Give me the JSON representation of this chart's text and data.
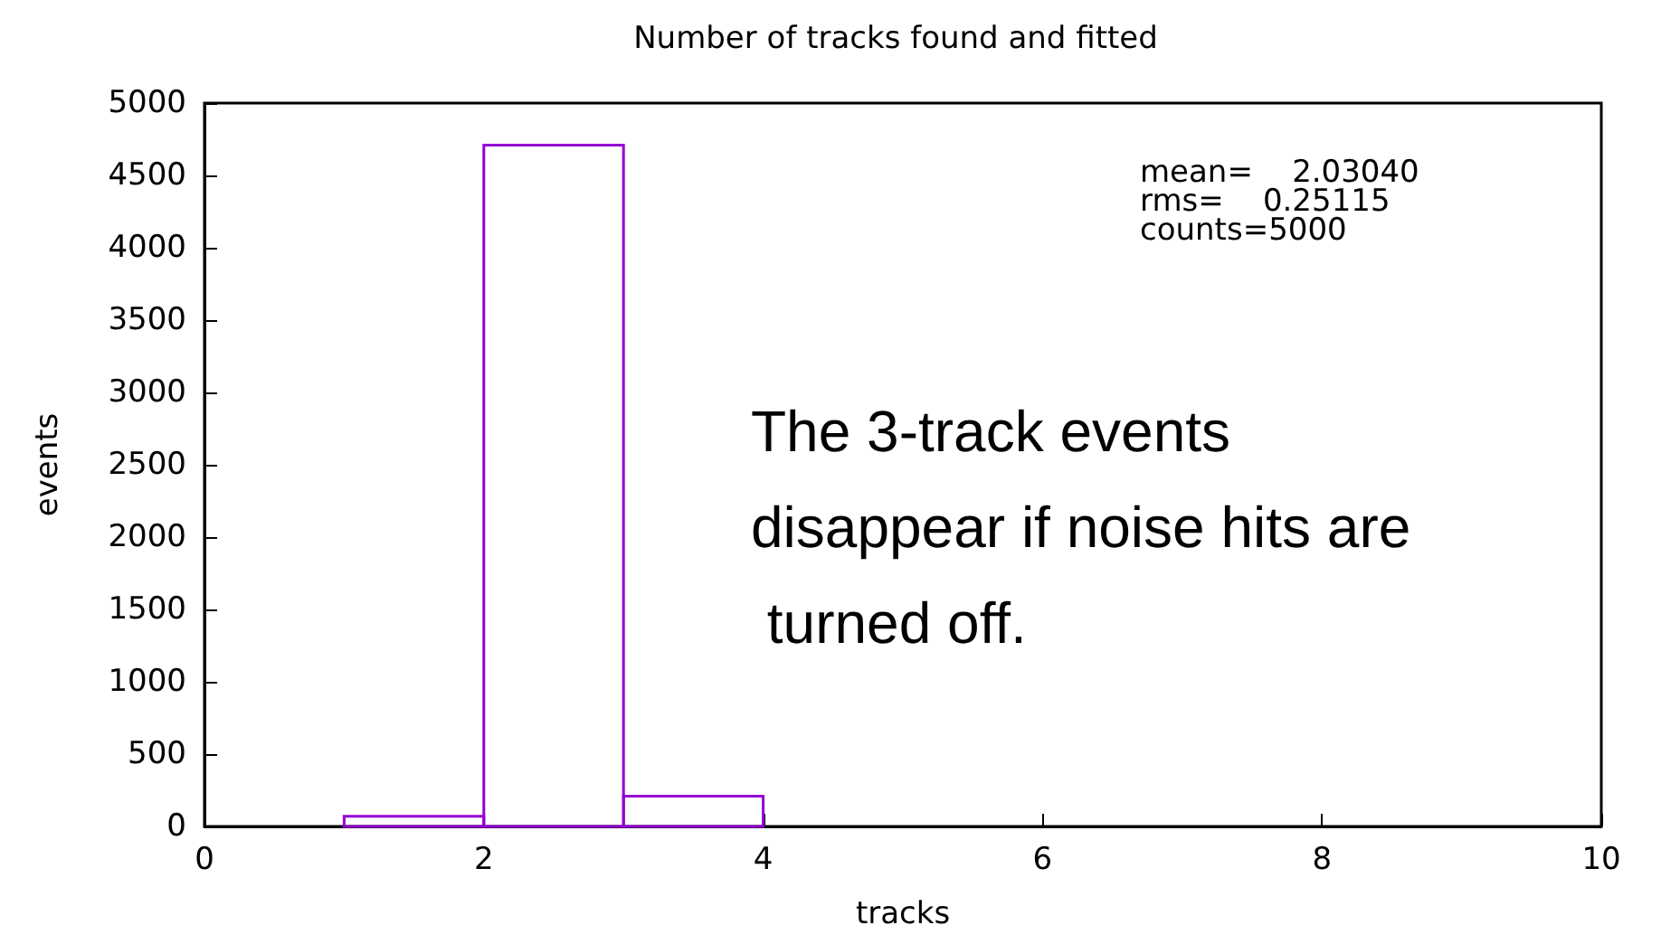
{
  "chart_data": {
    "type": "histogram",
    "title": "Number of tracks found and fitted",
    "xlabel": "tracks",
    "ylabel": "events",
    "bins": [
      1,
      2,
      3,
      4
    ],
    "values": [
      70,
      4710,
      210
    ],
    "color": "#9400d3",
    "xlim": [
      0,
      10
    ],
    "xticks": [
      0,
      2,
      4,
      6,
      8,
      10
    ],
    "ylim": [
      0,
      5000
    ],
    "yticks": [
      0,
      500,
      1000,
      1500,
      2000,
      2500,
      3000,
      3500,
      4000,
      4500,
      5000
    ],
    "grid": false,
    "annotations": [
      "mean=    2.03040",
      "rms=    0.25115",
      "counts=5000",
      "The 3-track events disappear if noise hits are turned off."
    ]
  }
}
